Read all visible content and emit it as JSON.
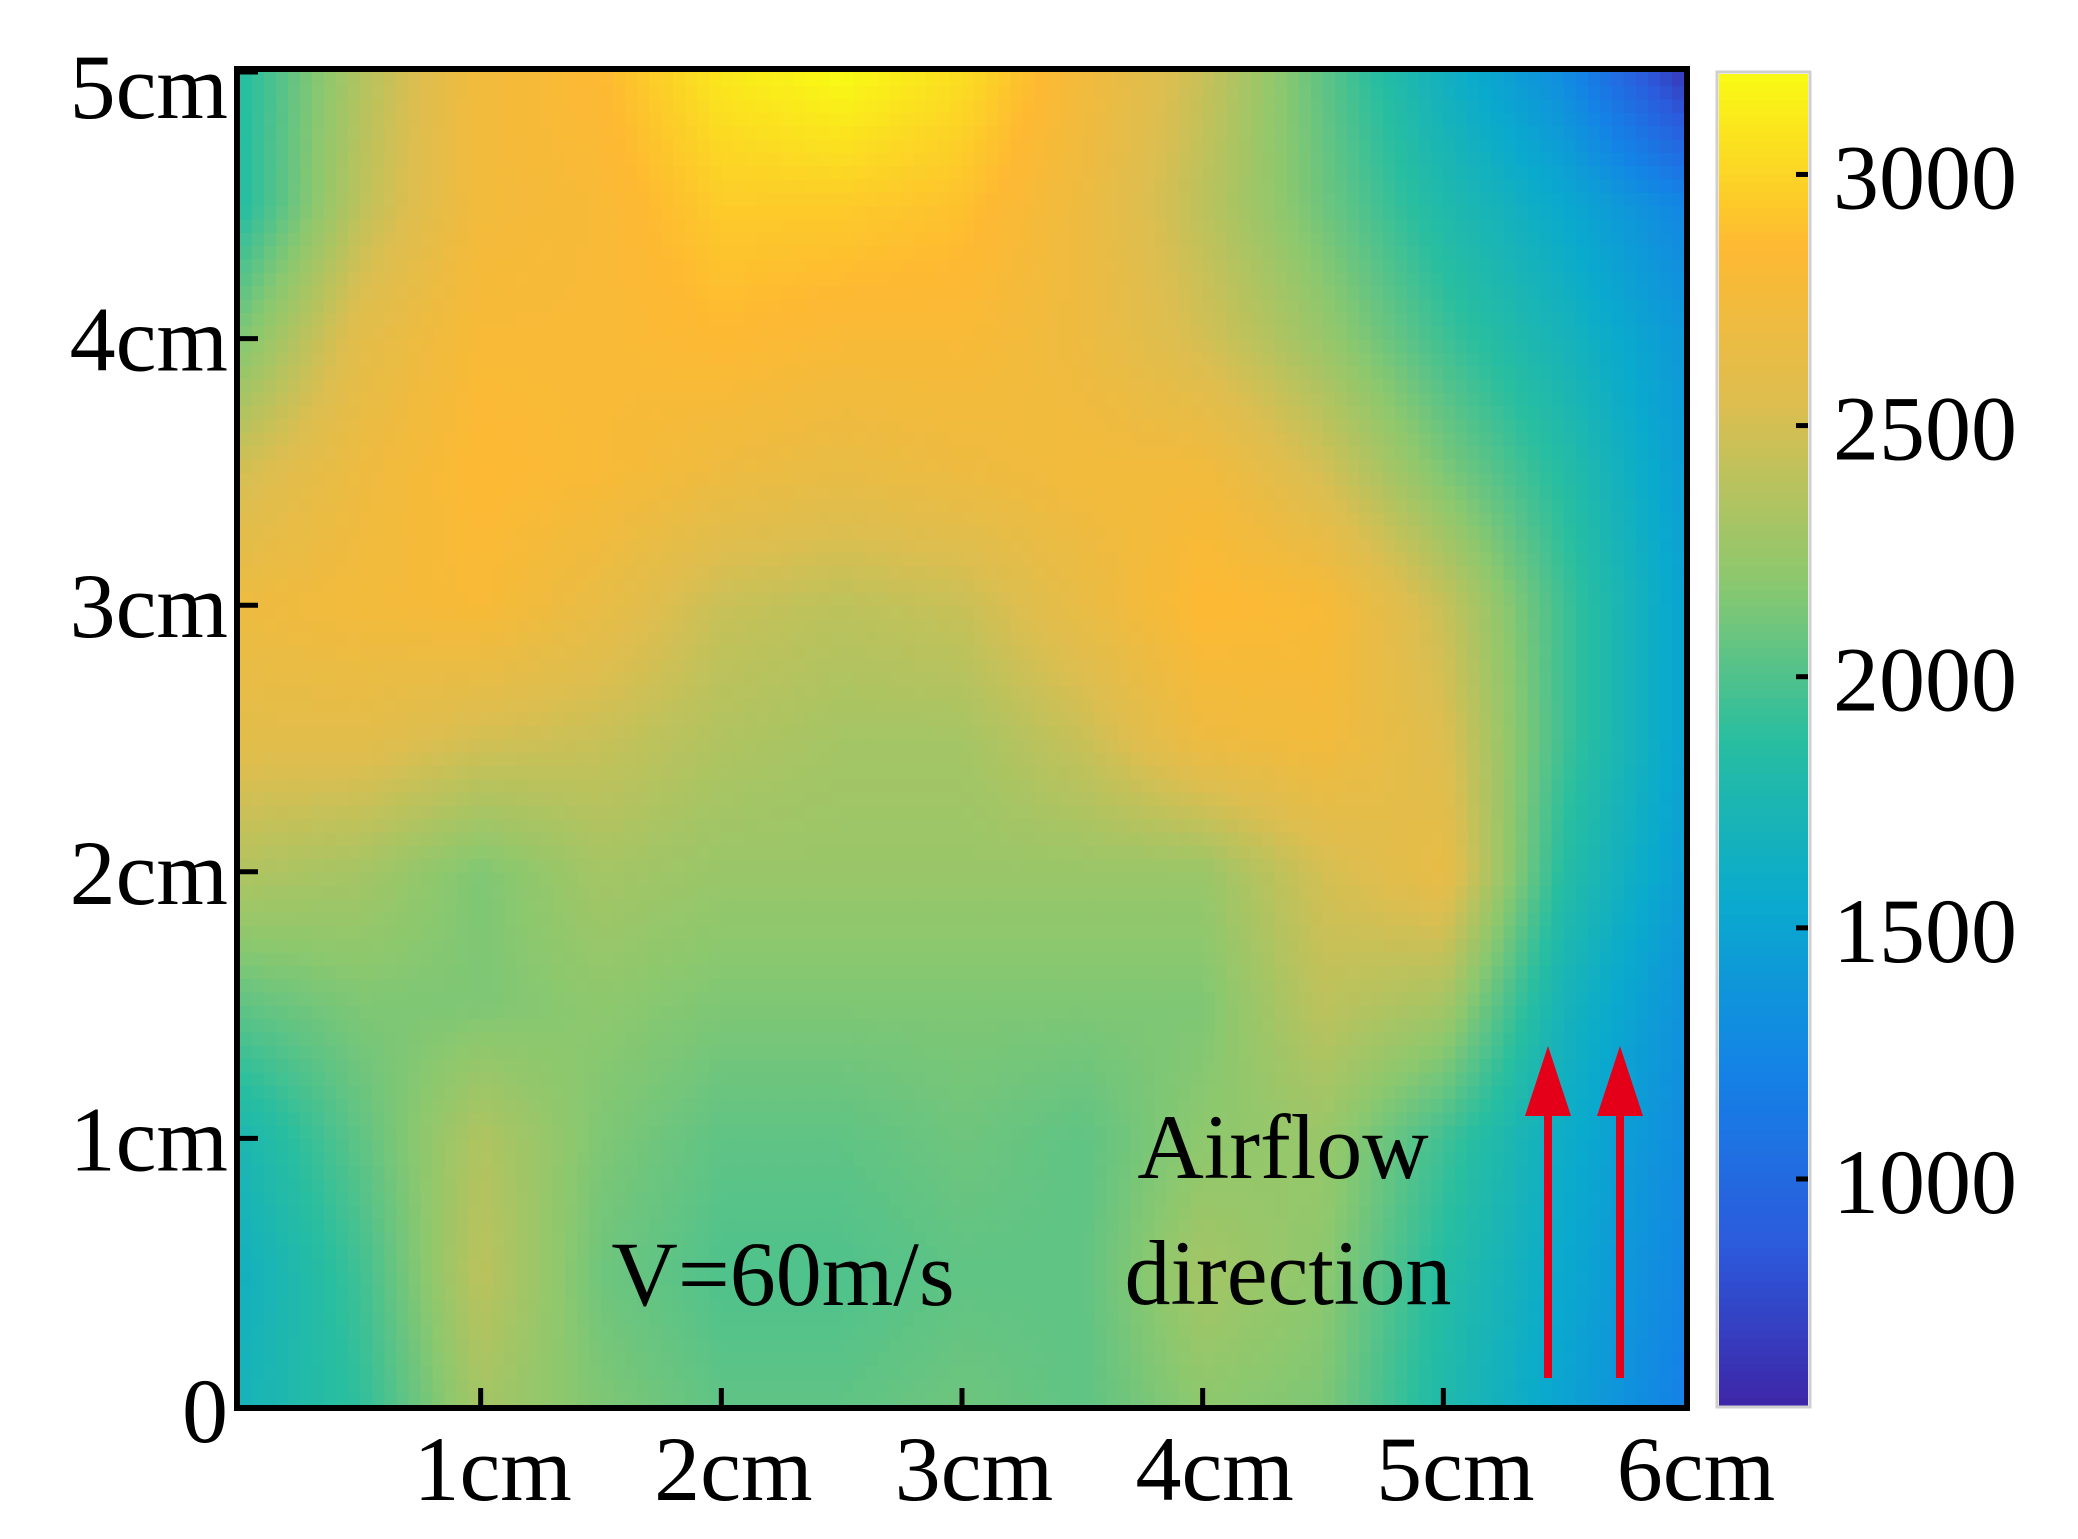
{
  "chart_data": {
    "type": "heatmap",
    "title": "",
    "xlabel": "",
    "ylabel": "",
    "x_ticks": [
      "1cm",
      "2cm",
      "3cm",
      "4cm",
      "5cm",
      "6cm"
    ],
    "y_ticks": [
      "0",
      "1cm",
      "2cm",
      "3cm",
      "4cm",
      "5cm"
    ],
    "xlim": [
      0,
      6
    ],
    "ylim": [
      0,
      5
    ],
    "x_unit": "cm",
    "y_unit": "cm",
    "colorbar": {
      "range": [
        550,
        3200
      ],
      "ticks": [
        "1000",
        "1500",
        "2000",
        "2500",
        "3000"
      ],
      "tick_values": [
        1000,
        1500,
        2000,
        2500,
        3000
      ],
      "colormap": "parula"
    },
    "grid_x": [
      0,
      0.5,
      1,
      1.5,
      2,
      2.5,
      3,
      3.5,
      4,
      4.5,
      5,
      5.5,
      6
    ],
    "grid_y": [
      0,
      0.5,
      1,
      1.5,
      2,
      2.5,
      3,
      3.5,
      4,
      4.5,
      5
    ],
    "z_rows": [
      [
        1700,
        1900,
        2300,
        2150,
        2050,
        2050,
        2100,
        2050,
        2200,
        2150,
        1800,
        1500,
        1200
      ],
      [
        1650,
        1950,
        2400,
        2100,
        2000,
        2000,
        2050,
        2050,
        2300,
        2200,
        1850,
        1550,
        1250
      ],
      [
        1750,
        2050,
        2350,
        2150,
        2050,
        2050,
        2100,
        2050,
        2200,
        2250,
        1950,
        1600,
        1300
      ],
      [
        2050,
        2150,
        2150,
        2200,
        2150,
        2150,
        2150,
        2150,
        2150,
        2400,
        2300,
        1700,
        1350
      ],
      [
        2350,
        2300,
        2150,
        2300,
        2250,
        2250,
        2250,
        2250,
        2250,
        2500,
        2650,
        1850,
        1450
      ],
      [
        2600,
        2600,
        2500,
        2450,
        2350,
        2300,
        2300,
        2450,
        2700,
        2750,
        2550,
        1950,
        1500
      ],
      [
        2700,
        2750,
        2800,
        2650,
        2450,
        2400,
        2450,
        2650,
        2850,
        2800,
        2450,
        1950,
        1500
      ],
      [
        2500,
        2700,
        2850,
        2800,
        2700,
        2650,
        2700,
        2750,
        2750,
        2500,
        2150,
        1850,
        1450
      ],
      [
        2150,
        2600,
        2800,
        2800,
        2850,
        2800,
        2800,
        2700,
        2500,
        2250,
        1950,
        1700,
        1400
      ],
      [
        1850,
        2400,
        2750,
        2800,
        2950,
        2950,
        2900,
        2700,
        2400,
        2100,
        1800,
        1550,
        1250
      ],
      [
        1850,
        2350,
        2750,
        2850,
        3100,
        3200,
        3050,
        2750,
        2450,
        2050,
        1650,
        1300,
        650
      ]
    ],
    "annotations": {
      "speed": "V=60m/s",
      "airflow_line1": "Airflow",
      "airflow_line2": "direction",
      "arrow_color": "#e5001a"
    }
  }
}
